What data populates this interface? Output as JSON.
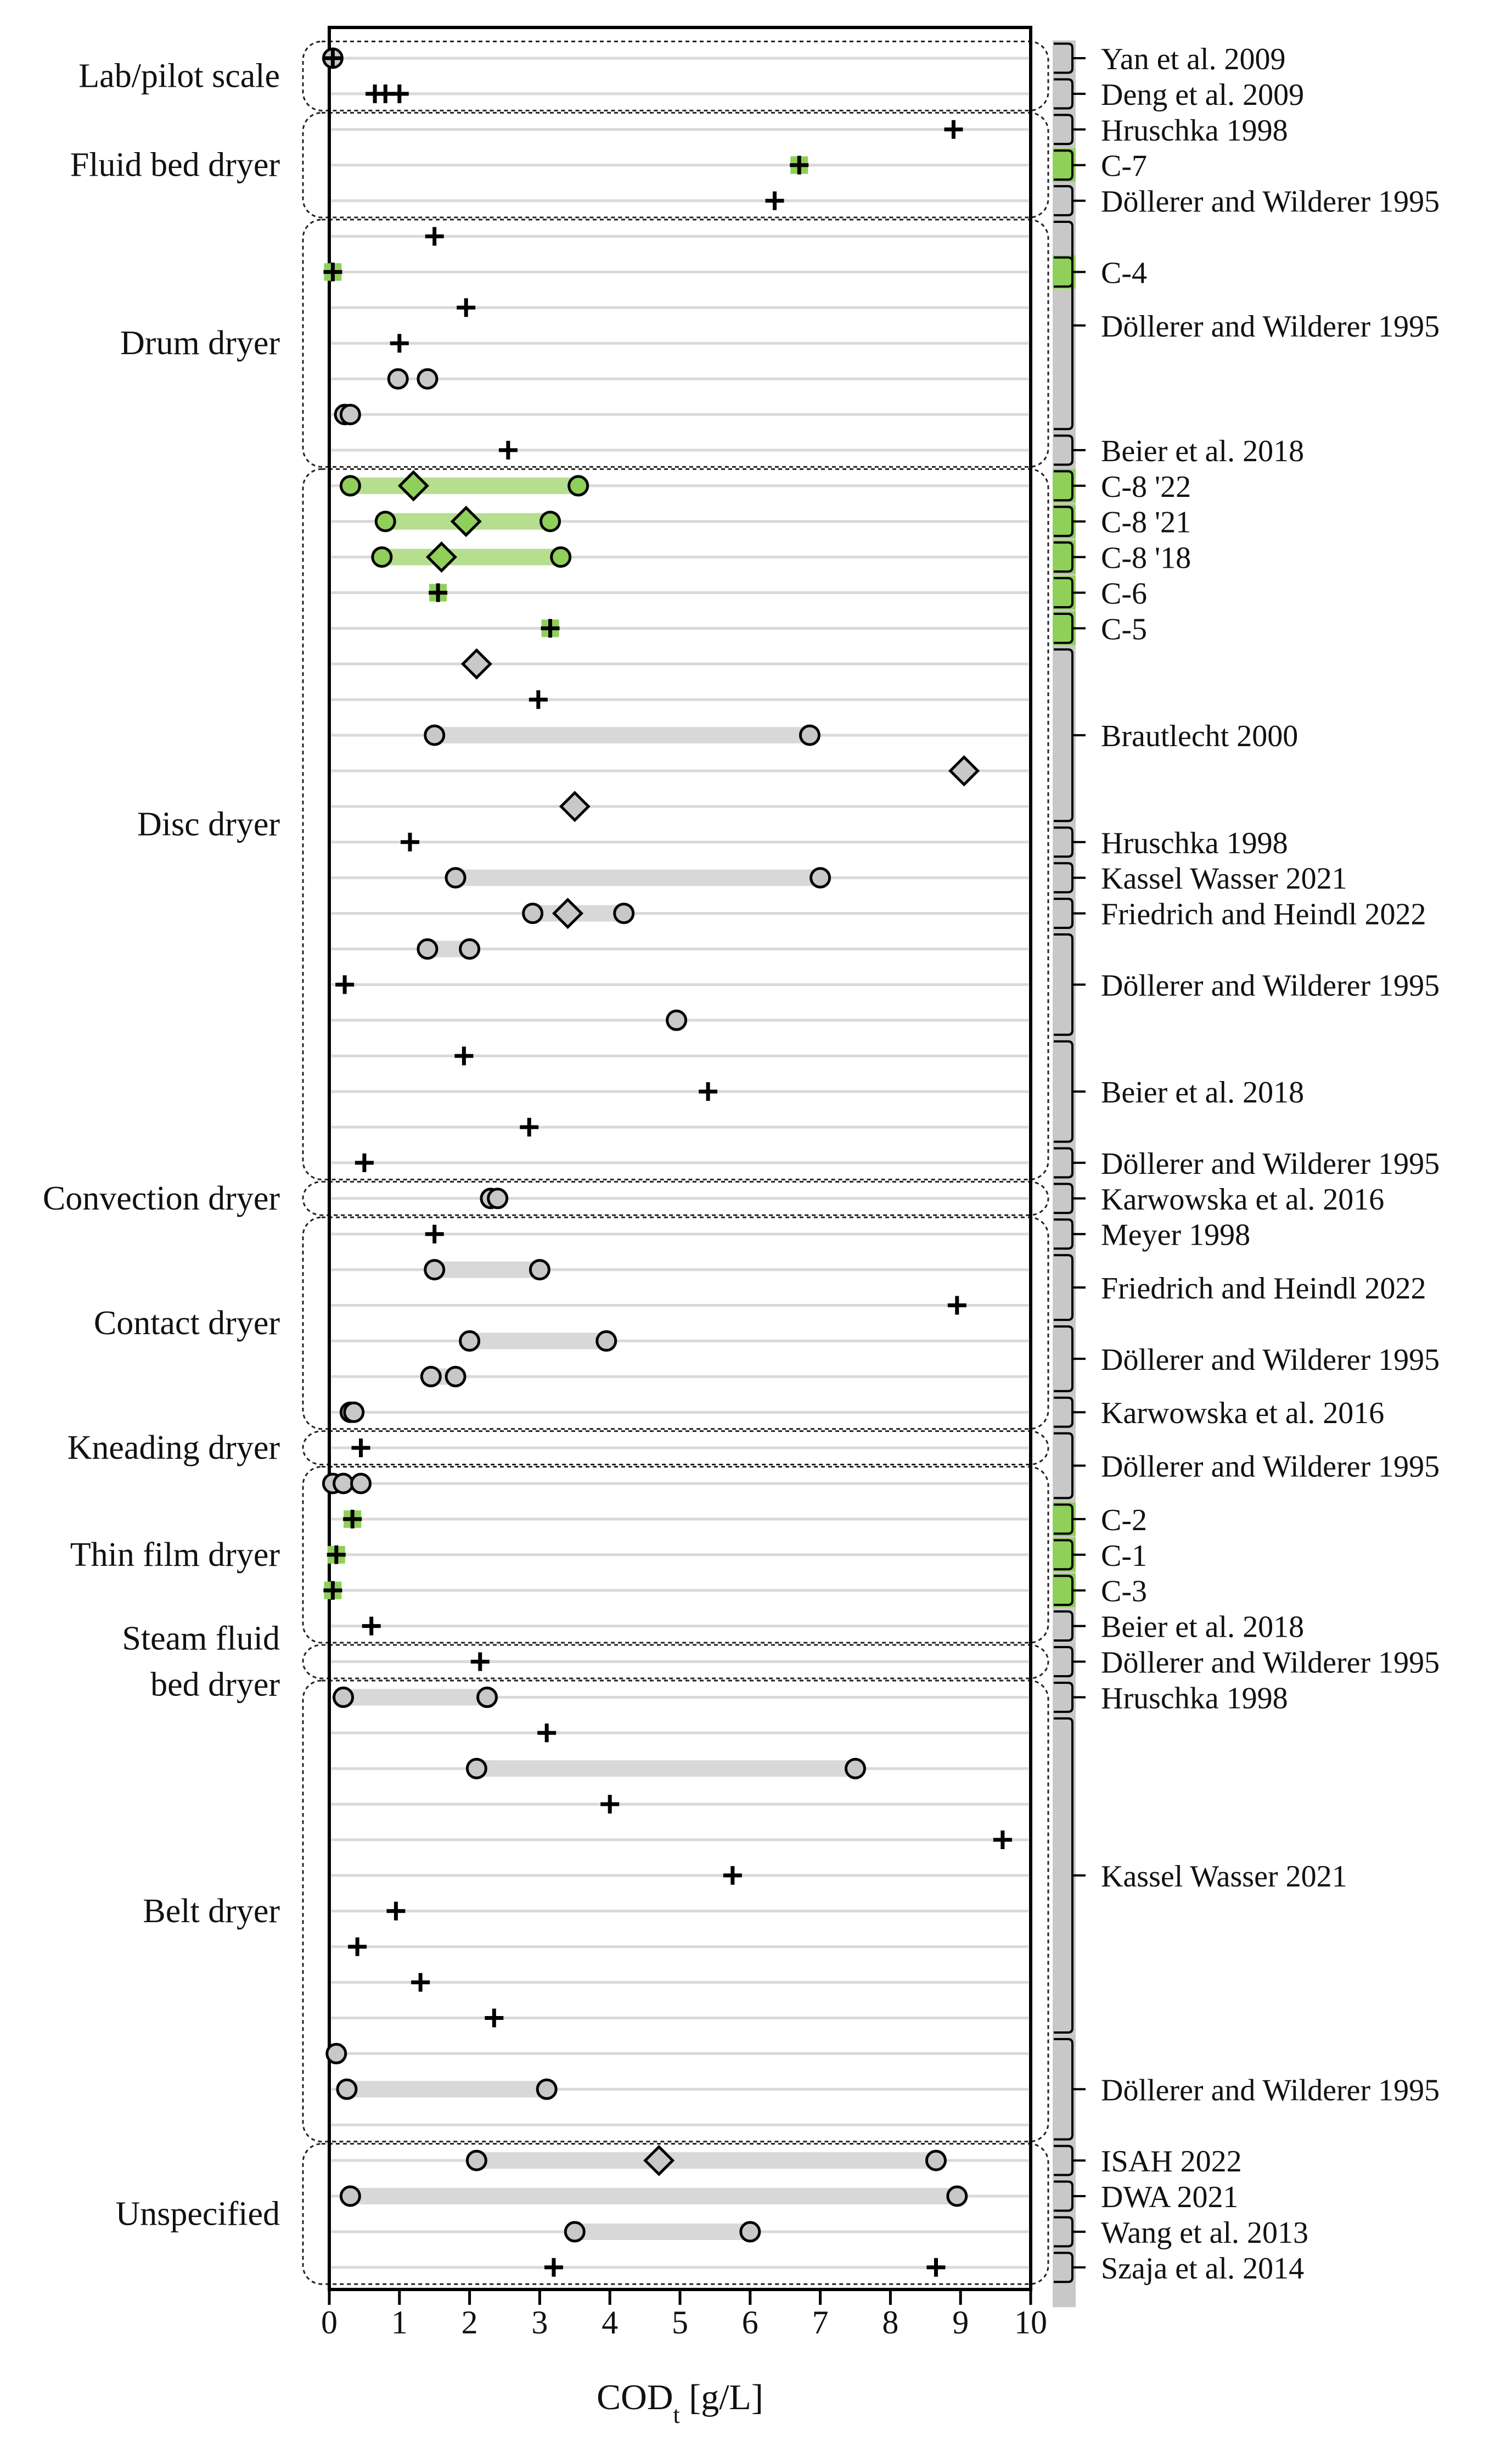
{
  "chart_data": {
    "type": "range-dot",
    "xlabel": "COD",
    "xlabel_sub": "t",
    "xlabel_unit": " [g/L]",
    "xlim": [
      0,
      10
    ],
    "xticks": [
      0,
      1,
      2,
      3,
      4,
      5,
      6,
      7,
      8,
      9,
      10
    ],
    "grid": "horizontal row lines",
    "colors": {
      "literature": "#c8c8c8",
      "case_study": "#8fcf5a",
      "highlight_bar": "#b5de8f",
      "range_bar": "#d8d8d8"
    },
    "marker_legend_implied": {
      "plus": "single value",
      "circle": "min / max",
      "diamond": "mean"
    },
    "groups": [
      {
        "name": "Lab/pilot scale",
        "rows": [
          1,
          2
        ]
      },
      {
        "name": "Fluid bed dryer",
        "rows": [
          3,
          5
        ]
      },
      {
        "name": "Drum dryer",
        "rows": [
          6,
          12
        ]
      },
      {
        "name": "Disc dryer",
        "rows": [
          13,
          32
        ]
      },
      {
        "name": "Convection dryer",
        "rows": [
          33,
          33
        ]
      },
      {
        "name": "Contact dryer",
        "rows": [
          34,
          39
        ]
      },
      {
        "name": "Kneading dryer",
        "rows": [
          40,
          40
        ]
      },
      {
        "name": "Thin film dryer",
        "rows": [
          41,
          45
        ]
      },
      {
        "name": "Steam fluid bed dryer",
        "lines": [
          "Steam fluid",
          "bed dryer"
        ],
        "rows": [
          46,
          46
        ]
      },
      {
        "name": "Belt dryer",
        "rows": [
          47,
          59
        ]
      },
      {
        "name": "Unspecified",
        "rows": [
          60,
          63
        ]
      }
    ],
    "sources": [
      {
        "name": "Yan et al. 2009",
        "rows": [
          1,
          1
        ],
        "kind": "literature"
      },
      {
        "name": "Deng et al. 2009",
        "rows": [
          2,
          2
        ],
        "kind": "literature"
      },
      {
        "name": "Hruschka 1998",
        "rows": [
          3,
          3
        ],
        "kind": "literature"
      },
      {
        "name": "C-7",
        "rows": [
          4,
          4
        ],
        "kind": "case"
      },
      {
        "name": "Döllerer and Wilderer 1995",
        "rows": [
          5,
          5
        ],
        "kind": "literature"
      },
      {
        "name": "C-4",
        "rows": [
          7,
          7
        ],
        "kind": "case"
      },
      {
        "name": "Döllerer and Wilderer 1995",
        "rows": [
          6,
          11
        ],
        "kind": "literature",
        "skip": [
          7
        ]
      },
      {
        "name": "Beier et al. 2018",
        "rows": [
          12,
          12
        ],
        "kind": "literature"
      },
      {
        "name": "C-8 '22",
        "rows": [
          13,
          13
        ],
        "kind": "case"
      },
      {
        "name": "C-8 '21",
        "rows": [
          14,
          14
        ],
        "kind": "case"
      },
      {
        "name": "C-8 '18",
        "rows": [
          15,
          15
        ],
        "kind": "case"
      },
      {
        "name": "C-6",
        "rows": [
          16,
          16
        ],
        "kind": "case"
      },
      {
        "name": "C-5",
        "rows": [
          17,
          17
        ],
        "kind": "case"
      },
      {
        "name": "Brautlecht 2000",
        "rows": [
          18,
          22
        ],
        "kind": "literature"
      },
      {
        "name": "Hruschka 1998",
        "rows": [
          23,
          23
        ],
        "kind": "literature"
      },
      {
        "name": "Kassel Wasser 2021",
        "rows": [
          24,
          24
        ],
        "kind": "literature"
      },
      {
        "name": "Friedrich and Heindl 2022",
        "rows": [
          25,
          25
        ],
        "kind": "literature"
      },
      {
        "name": "Döllerer and Wilderer 1995",
        "rows": [
          26,
          28
        ],
        "kind": "literature"
      },
      {
        "name": "Beier et al. 2018",
        "rows": [
          29,
          31
        ],
        "kind": "literature"
      },
      {
        "name": "Döllerer and Wilderer 1995",
        "rows": [
          32,
          32
        ],
        "kind": "literature"
      },
      {
        "name": "Karwowska et al. 2016",
        "rows": [
          33,
          33
        ],
        "kind": "literature"
      },
      {
        "name": "Meyer 1998",
        "rows": [
          34,
          34
        ],
        "kind": "literature"
      },
      {
        "name": "Friedrich and Heindl 2022",
        "rows": [
          35,
          36
        ],
        "kind": "literature"
      },
      {
        "name": "Döllerer and Wilderer 1995",
        "rows": [
          37,
          38
        ],
        "kind": "literature"
      },
      {
        "name": "Karwowska et al. 2016",
        "rows": [
          39,
          39
        ],
        "kind": "literature"
      },
      {
        "name": "Döllerer and Wilderer 1995",
        "rows": [
          40,
          41
        ],
        "kind": "literature"
      },
      {
        "name": "C-2",
        "rows": [
          42,
          42
        ],
        "kind": "case"
      },
      {
        "name": "C-1",
        "rows": [
          43,
          43
        ],
        "kind": "case"
      },
      {
        "name": "C-3",
        "rows": [
          44,
          44
        ],
        "kind": "case"
      },
      {
        "name": "Beier et al. 2018",
        "rows": [
          45,
          45
        ],
        "kind": "literature"
      },
      {
        "name": "Döllerer and Wilderer 1995",
        "rows": [
          46,
          46
        ],
        "kind": "literature"
      },
      {
        "name": "Hruschka 1998",
        "rows": [
          47,
          47
        ],
        "kind": "literature"
      },
      {
        "name": "Kassel Wasser 2021",
        "rows": [
          48,
          56
        ],
        "kind": "literature"
      },
      {
        "name": "Döllerer and Wilderer 1995",
        "rows": [
          57,
          59
        ],
        "kind": "literature"
      },
      {
        "name": "ISAH 2022",
        "rows": [
          60,
          60
        ],
        "kind": "literature"
      },
      {
        "name": "DWA 2021",
        "rows": [
          61,
          61
        ],
        "kind": "literature"
      },
      {
        "name": "Wang et al. 2013",
        "rows": [
          62,
          62
        ],
        "kind": "literature"
      },
      {
        "name": "Szaja et al. 2014",
        "rows": [
          63,
          63
        ],
        "kind": "literature"
      }
    ],
    "rows": [
      {
        "row": 1,
        "kind": "literature",
        "plus": [
          0.05
        ],
        "circles": [
          0.05
        ]
      },
      {
        "row": 2,
        "kind": "literature",
        "plus": [
          0.65,
          0.8,
          1.0
        ]
      },
      {
        "row": 3,
        "kind": "literature",
        "plus": [
          8.9
        ]
      },
      {
        "row": 4,
        "kind": "case",
        "plus": [
          6.7
        ]
      },
      {
        "row": 5,
        "kind": "literature",
        "plus": [
          6.35
        ]
      },
      {
        "row": 6,
        "kind": "literature",
        "plus": [
          1.5
        ]
      },
      {
        "row": 7,
        "kind": "case",
        "plus": [
          0.05
        ]
      },
      {
        "row": 8,
        "kind": "literature",
        "plus": [
          1.95
        ]
      },
      {
        "row": 9,
        "kind": "literature",
        "plus": [
          1.0
        ]
      },
      {
        "row": 10,
        "kind": "literature",
        "circles": [
          0.98,
          1.4
        ]
      },
      {
        "row": 11,
        "kind": "literature",
        "circles": [
          0.22,
          0.3
        ]
      },
      {
        "row": 12,
        "kind": "literature",
        "plus": [
          2.55
        ]
      },
      {
        "row": 13,
        "kind": "case",
        "range": [
          0.3,
          3.55
        ],
        "diamond": 1.2
      },
      {
        "row": 14,
        "kind": "case",
        "range": [
          0.8,
          3.15
        ],
        "diamond": 1.95
      },
      {
        "row": 15,
        "kind": "case",
        "range": [
          0.75,
          3.3
        ],
        "diamond": 1.6
      },
      {
        "row": 16,
        "kind": "case",
        "plus": [
          1.55
        ]
      },
      {
        "row": 17,
        "kind": "case",
        "plus": [
          3.15
        ]
      },
      {
        "row": 18,
        "kind": "literature",
        "diamond": 2.1
      },
      {
        "row": 19,
        "kind": "literature",
        "plus": [
          2.98
        ]
      },
      {
        "row": 20,
        "kind": "literature",
        "range": [
          1.5,
          6.85
        ]
      },
      {
        "row": 21,
        "kind": "literature",
        "diamond": 9.05
      },
      {
        "row": 22,
        "kind": "literature",
        "diamond": 3.5
      },
      {
        "row": 23,
        "kind": "literature",
        "plus": [
          1.15
        ]
      },
      {
        "row": 24,
        "kind": "literature",
        "range": [
          1.8,
          7.0
        ]
      },
      {
        "row": 25,
        "kind": "literature",
        "range": [
          2.9,
          4.2
        ],
        "diamond": 3.4
      },
      {
        "row": 26,
        "kind": "literature",
        "range": [
          1.4,
          2.0
        ]
      },
      {
        "row": 27,
        "kind": "literature",
        "plus": [
          0.22
        ]
      },
      {
        "row": 28,
        "kind": "literature",
        "circles": [
          4.95
        ]
      },
      {
        "row": 29,
        "kind": "literature",
        "plus": [
          1.92
        ]
      },
      {
        "row": 30,
        "kind": "literature",
        "plus": [
          5.4
        ]
      },
      {
        "row": 31,
        "kind": "literature",
        "plus": [
          2.85
        ]
      },
      {
        "row": 32,
        "kind": "literature",
        "plus": [
          0.5
        ]
      },
      {
        "row": 33,
        "kind": "literature",
        "circles": [
          2.3,
          2.4
        ]
      },
      {
        "row": 34,
        "kind": "literature",
        "plus": [
          1.5
        ]
      },
      {
        "row": 35,
        "kind": "literature",
        "range": [
          1.5,
          3.0
        ]
      },
      {
        "row": 36,
        "kind": "literature",
        "plus": [
          8.95
        ]
      },
      {
        "row": 37,
        "kind": "literature",
        "range": [
          2.0,
          3.95
        ]
      },
      {
        "row": 38,
        "kind": "literature",
        "range": [
          1.45,
          1.8
        ]
      },
      {
        "row": 39,
        "kind": "literature",
        "circles": [
          0.3,
          0.35
        ]
      },
      {
        "row": 40,
        "kind": "literature",
        "plus": [
          0.45
        ]
      },
      {
        "row": 41,
        "kind": "literature",
        "circles": [
          0.05,
          0.2,
          0.45
        ]
      },
      {
        "row": 42,
        "kind": "case",
        "plus": [
          0.33
        ]
      },
      {
        "row": 43,
        "kind": "case",
        "plus": [
          0.1
        ]
      },
      {
        "row": 44,
        "kind": "case",
        "plus": [
          0.05
        ]
      },
      {
        "row": 45,
        "kind": "literature",
        "plus": [
          0.6
        ]
      },
      {
        "row": 46,
        "kind": "literature",
        "plus": [
          2.15
        ]
      },
      {
        "row": 47,
        "kind": "literature",
        "range": [
          0.2,
          2.25
        ]
      },
      {
        "row": 48,
        "kind": "literature",
        "plus": [
          3.1
        ]
      },
      {
        "row": 49,
        "kind": "literature",
        "range": [
          2.1,
          7.5
        ]
      },
      {
        "row": 50,
        "kind": "literature",
        "plus": [
          4.0
        ]
      },
      {
        "row": 51,
        "kind": "literature",
        "plus": [
          9.6
        ]
      },
      {
        "row": 52,
        "kind": "literature",
        "plus": [
          5.75
        ]
      },
      {
        "row": 53,
        "kind": "literature",
        "plus": [
          0.95
        ]
      },
      {
        "row": 54,
        "kind": "literature",
        "plus": [
          0.4
        ]
      },
      {
        "row": 55,
        "kind": "literature",
        "plus": [
          1.3
        ]
      },
      {
        "row": 56,
        "kind": "literature",
        "plus": [
          2.35
        ]
      },
      {
        "row": 57,
        "kind": "literature",
        "circles": [
          0.1
        ]
      },
      {
        "row": 58,
        "kind": "literature",
        "range": [
          0.25,
          3.1
        ]
      },
      {
        "row": 59,
        "kind": "literature"
      },
      {
        "row": 60,
        "kind": "literature",
        "range": [
          2.1,
          8.65
        ],
        "diamond": 4.7
      },
      {
        "row": 61,
        "kind": "literature",
        "range": [
          0.3,
          8.95
        ]
      },
      {
        "row": 62,
        "kind": "literature",
        "range": [
          3.5,
          6.0
        ]
      },
      {
        "row": 63,
        "kind": "literature",
        "plus": [
          3.2,
          8.65
        ]
      }
    ]
  }
}
